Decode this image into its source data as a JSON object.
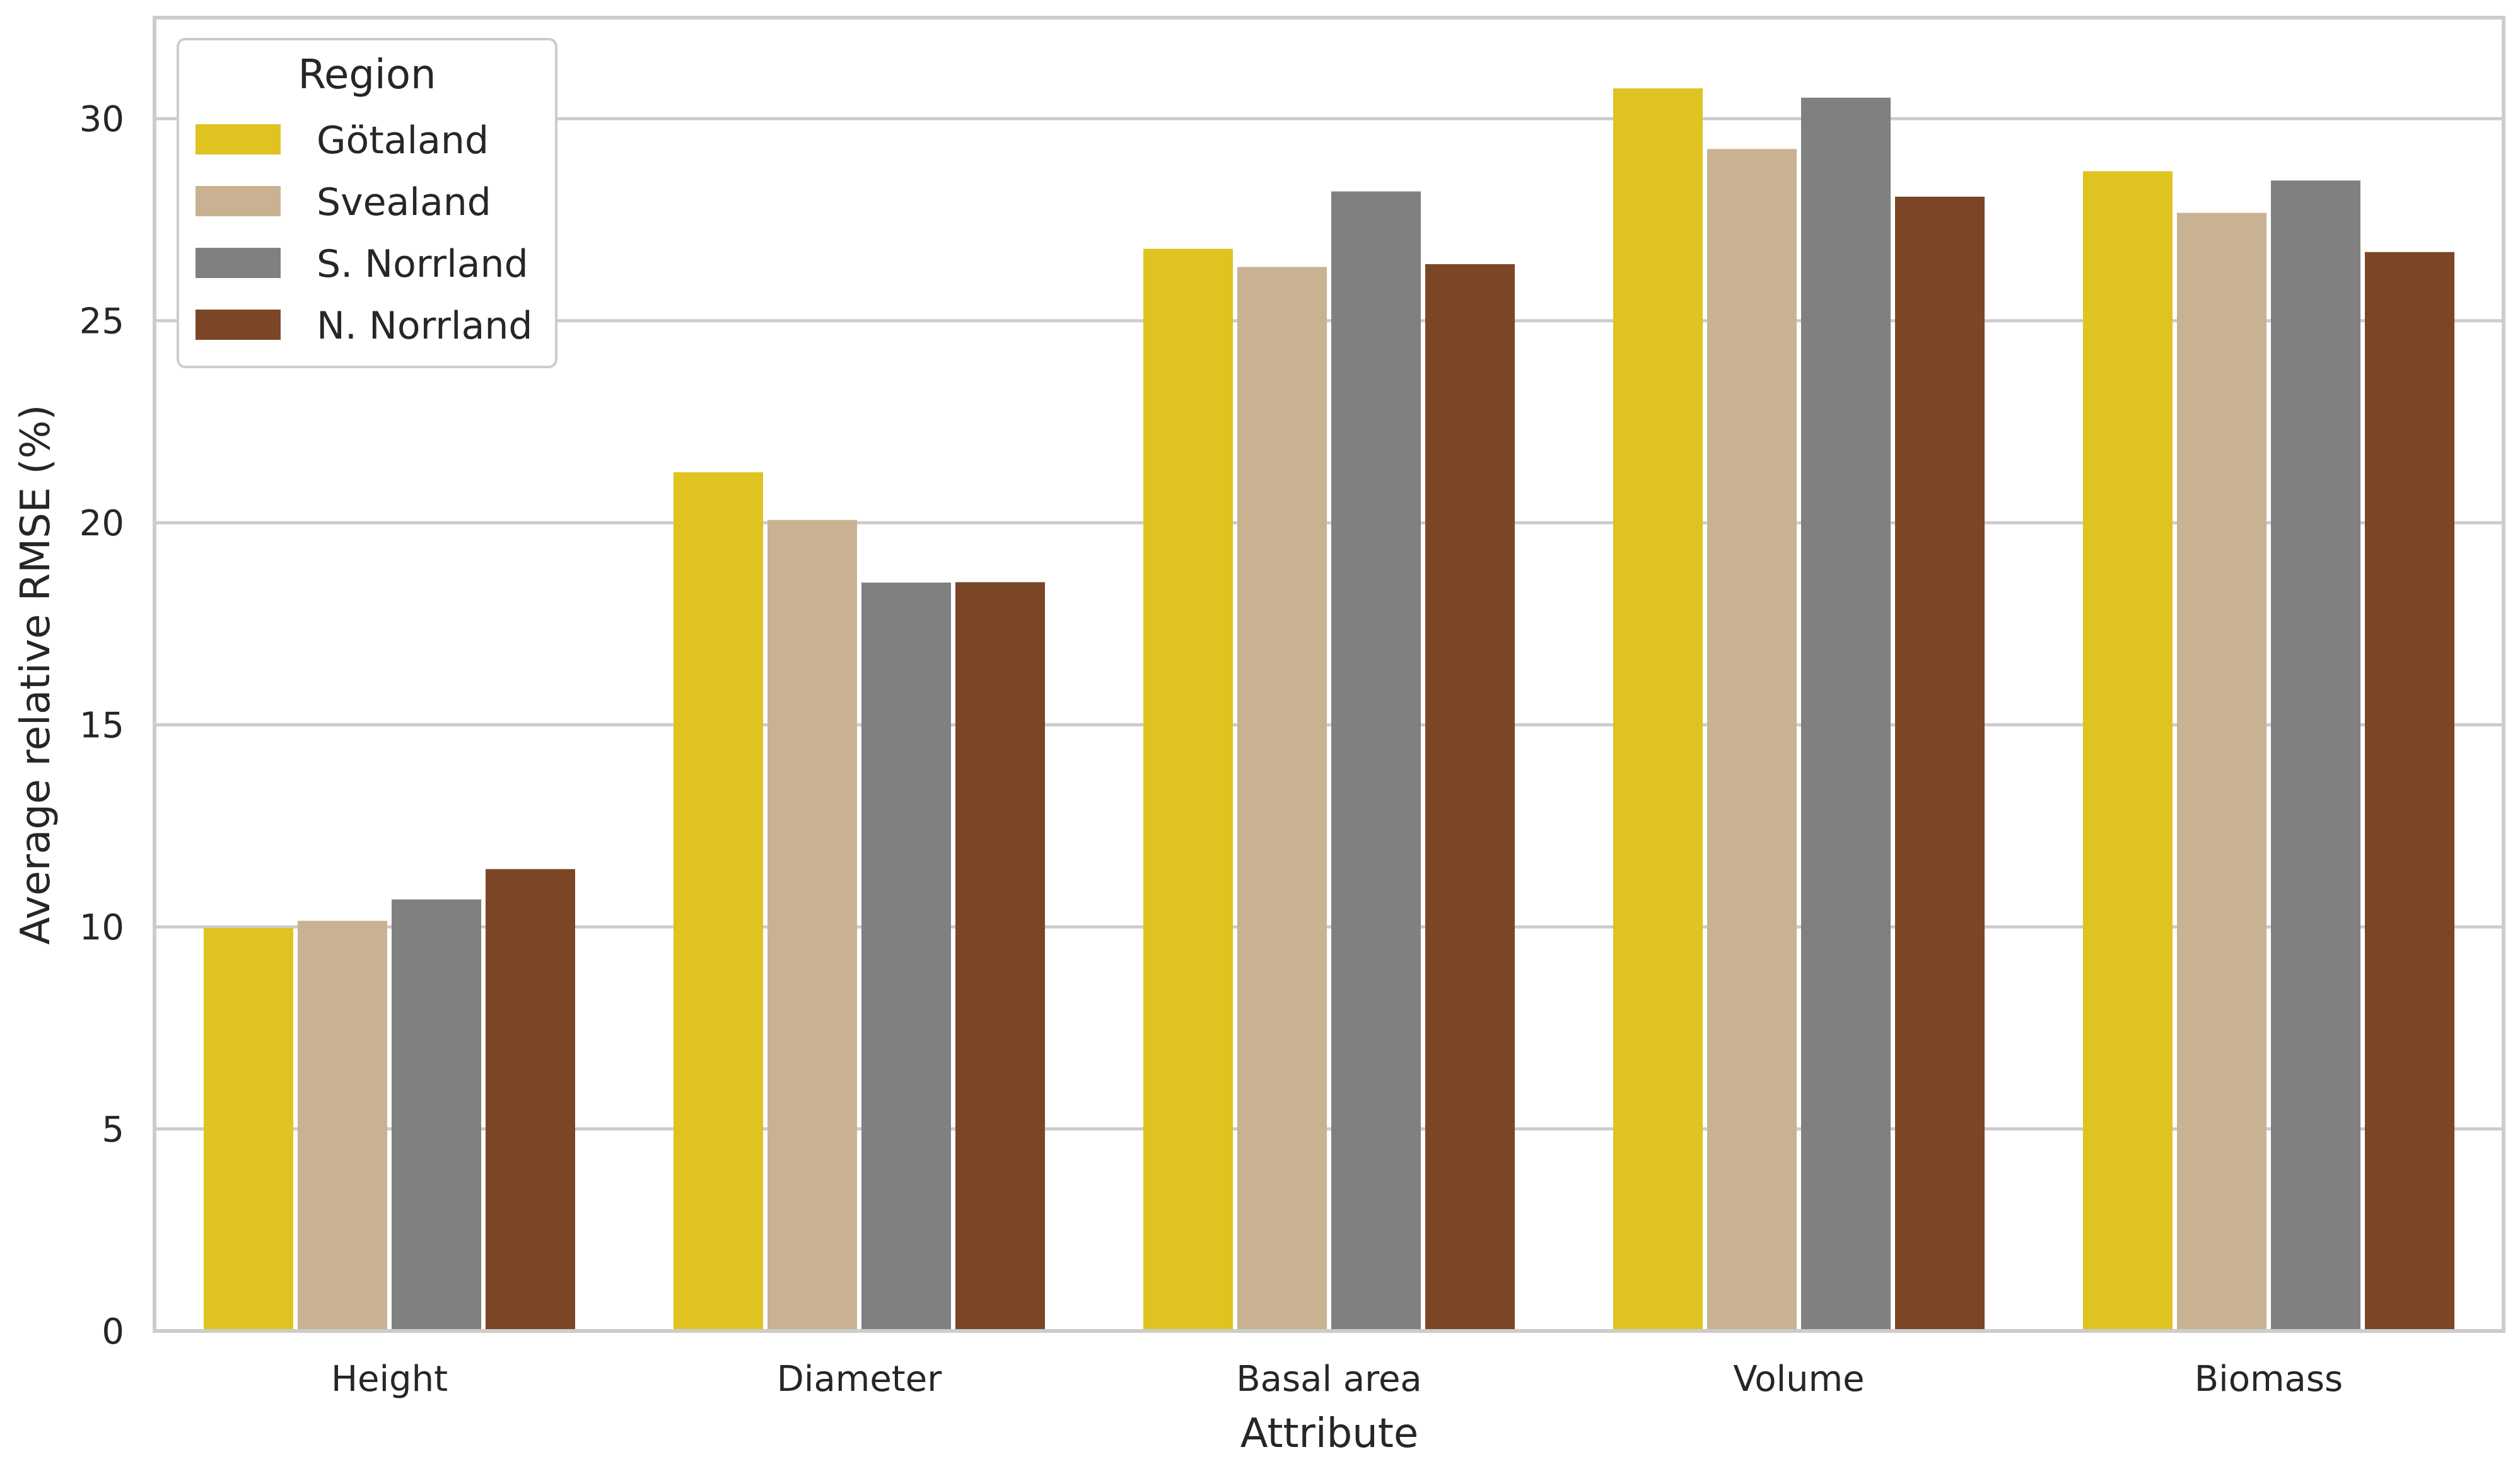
{
  "chart_data": {
    "type": "bar",
    "xlabel": "Attribute",
    "ylabel": "Average relative RMSE (%)",
    "ylim": [
      0,
      32.5
    ],
    "yticks": [
      0,
      5,
      10,
      15,
      20,
      25,
      30
    ],
    "grid": "horizontal",
    "legend_title": "Region",
    "legend_position": "top-left",
    "categories": [
      "Height",
      "Diameter",
      "Basal area",
      "Volume",
      "Biomass"
    ],
    "series": [
      {
        "name": "Götaland",
        "color": "#dfc320",
        "values": [
          9.97,
          21.25,
          26.78,
          30.75,
          28.7
        ]
      },
      {
        "name": "Svealand",
        "color": "#c9b291",
        "values": [
          10.15,
          20.07,
          26.33,
          29.25,
          27.67
        ]
      },
      {
        "name": "S. Norrland",
        "color": "#808080",
        "values": [
          10.68,
          18.52,
          28.2,
          30.52,
          28.47
        ]
      },
      {
        "name": "N. Norrland",
        "color": "#7b4625",
        "values": [
          11.43,
          18.53,
          26.4,
          28.07,
          26.7
        ]
      }
    ]
  }
}
